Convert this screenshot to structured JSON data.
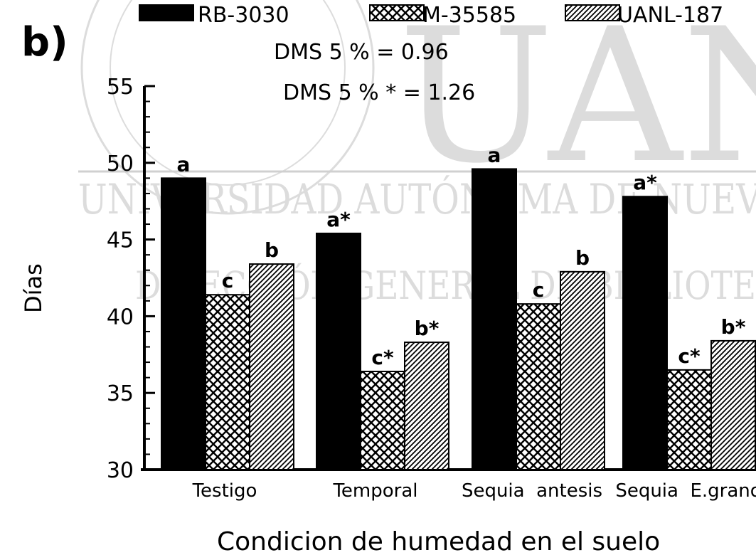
{
  "panel_label": "b)",
  "watermark": {
    "big_text": "UAN",
    "university_line": "UNIVERSIDAD AUTÓNOMA DE NUEV",
    "library_line": "DIRECCIÓN GENERAL DE BIBLIOTE"
  },
  "chart_data": {
    "type": "bar",
    "title": "",
    "xlabel": "Condicion de humedad en el suelo",
    "ylabel": "Días",
    "ylim": [
      30,
      55
    ],
    "yticks": [
      30,
      35,
      40,
      45,
      50,
      55
    ],
    "categories": [
      "Testigo",
      "Temporal",
      "Sequia  antesis",
      "Sequia  E.grano"
    ],
    "series": [
      {
        "name": "RB-3030",
        "pattern": "solid",
        "values": [
          49.0,
          45.4,
          49.6,
          47.8
        ],
        "labels": [
          "a",
          "a*",
          "a",
          "a*"
        ]
      },
      {
        "name": "M-35585",
        "pattern": "crosshatch",
        "values": [
          41.4,
          36.4,
          40.8,
          36.5
        ],
        "labels": [
          "c",
          "c*",
          "c",
          "c*"
        ]
      },
      {
        "name": "UANL-187",
        "pattern": "diagonal",
        "values": [
          43.4,
          38.3,
          42.9,
          38.4
        ],
        "labels": [
          "b",
          "b*",
          "b",
          "b*"
        ]
      }
    ],
    "annotations": [
      "DMS 5 % = 0.96",
      "DMS 5 % * = 1.26"
    ],
    "legend_position": "top",
    "grid": false
  }
}
